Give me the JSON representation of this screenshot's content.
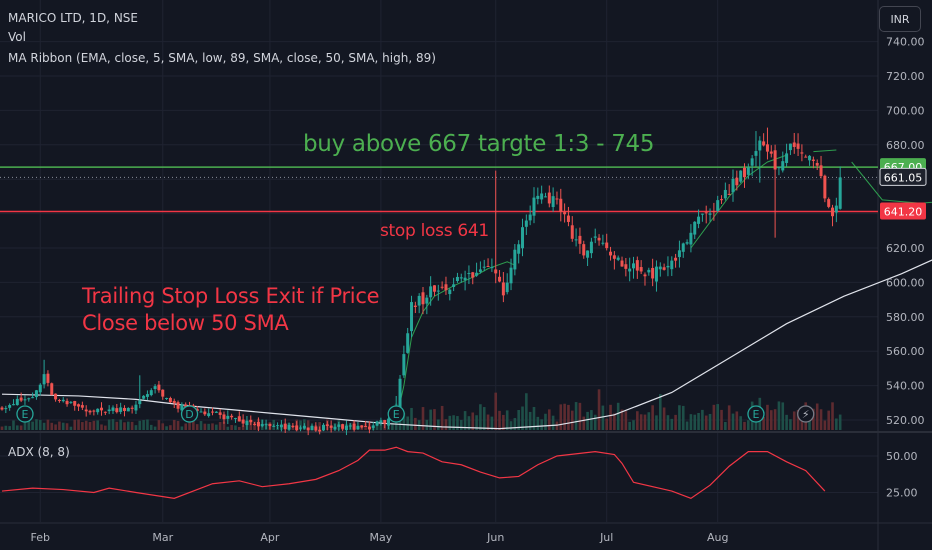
{
  "header": {
    "symbol_line": "MARICO LTD, 1D, NSE",
    "vol_label": "Vol",
    "ma_ribbon_label": "MA Ribbon (EMA, close, 5, SMA, low, 89, SMA, close, 50, SMA, high, 89)",
    "currency": "INR"
  },
  "indicator": {
    "label": "ADX (8, 8)"
  },
  "annotations": {
    "buy": "buy above 667 targte 1:3 - 745",
    "stop": "stop loss 641",
    "trailing_line1": "Trailing Stop Loss Exit if Price",
    "trailing_line2": "Close below 50 SMA"
  },
  "colors": {
    "background": "#131722",
    "up": "#26a69a",
    "down": "#ef5350",
    "grid": "#1f2331",
    "buy_line": "#4caf50",
    "stop_line": "#f23645",
    "sma50": "#e0e3eb",
    "ema5": "#2e9e4f",
    "adx": "#f23645",
    "annotation_green": "#4caf50",
    "annotation_red": "#f23645"
  },
  "chart_data": [
    {
      "type": "candlestick",
      "title": "MARICO LTD, 1D, NSE",
      "currency": "INR",
      "x_ticks": [
        "Feb",
        "Mar",
        "Apr",
        "May",
        "Jun",
        "Jul",
        "Aug"
      ],
      "y_ticks": [
        "520.00",
        "540.00",
        "560.00",
        "580.00",
        "600.00",
        "620.00",
        "640.00",
        "660.00",
        "680.00",
        "700.00",
        "720.00",
        "740.00"
      ],
      "ylim": [
        515,
        745
      ],
      "price_labels": [
        {
          "text": "667.00",
          "value": 667,
          "color": "#4caf50"
        },
        {
          "text": "661.05",
          "value": 661.05,
          "color": "#131722"
        },
        {
          "text": "641.20",
          "value": 641.2,
          "color": "#f23645"
        }
      ],
      "horizontal_lines": [
        {
          "name": "buy above",
          "value": 667,
          "color": "#4caf50"
        },
        {
          "name": "stop loss",
          "value": 641.2,
          "color": "#f23645"
        }
      ],
      "last_price": 661.05,
      "sma50": [
        [
          0,
          535
        ],
        [
          20,
          534
        ],
        [
          35,
          532
        ],
        [
          50,
          528
        ],
        [
          70,
          524
        ],
        [
          85,
          521
        ],
        [
          100,
          518
        ],
        [
          115,
          516
        ],
        [
          130,
          515
        ],
        [
          145,
          517
        ],
        [
          160,
          523
        ],
        [
          175,
          536
        ],
        [
          190,
          556
        ],
        [
          205,
          576
        ],
        [
          220,
          592
        ],
        [
          235,
          605
        ],
        [
          250,
          620
        ],
        [
          265,
          632
        ],
        [
          280,
          638
        ],
        [
          290,
          641
        ]
      ],
      "ema5_segments": [
        [
          [
            103,
            520
          ],
          [
            105,
            540
          ],
          [
            107,
            568
          ],
          [
            110,
            583
          ],
          [
            113,
            592
          ],
          [
            118,
            598
          ],
          [
            123,
            603
          ],
          [
            127,
            608
          ],
          [
            132,
            612
          ],
          [
            134,
            610
          ]
        ],
        [
          [
            180,
            620
          ],
          [
            185,
            635
          ],
          [
            190,
            650
          ],
          [
            195,
            662
          ],
          [
            200,
            670
          ],
          [
            205,
            674
          ]
        ],
        [
          [
            212,
            676
          ],
          [
            218,
            677
          ]
        ],
        [
          [
            222,
            670
          ],
          [
            230,
            648
          ],
          [
            240,
            646
          ],
          [
            250,
            648
          ]
        ]
      ],
      "event_markers": [
        {
          "label": "E",
          "x": 6
        },
        {
          "label": "D",
          "x": 49
        },
        {
          "label": "E",
          "x": 103
        },
        {
          "label": "E",
          "x": 197
        },
        {
          "label": "⚡",
          "x": 210
        }
      ]
    },
    {
      "type": "line",
      "name": "ADX (8, 8)",
      "y_ticks": [
        "25.00",
        "50.00"
      ],
      "ylim": [
        10,
        62
      ],
      "x": [
        0,
        8,
        16,
        24,
        28,
        35,
        45,
        55,
        62,
        68,
        75,
        82,
        88,
        93,
        96,
        100,
        103,
        106,
        110,
        115,
        120,
        125,
        130,
        135,
        140,
        145,
        155,
        160,
        162,
        165,
        175,
        180,
        185,
        190,
        195,
        200,
        205,
        210,
        215
      ],
      "values": [
        26,
        28,
        27,
        25,
        28,
        25,
        21,
        31,
        33,
        29,
        31,
        34,
        40,
        47,
        54,
        54,
        56,
        53,
        52,
        46,
        44,
        39,
        35,
        36,
        44,
        50,
        53,
        51,
        45,
        32,
        26,
        21,
        30,
        43,
        53,
        53,
        46,
        40,
        26
      ]
    }
  ]
}
